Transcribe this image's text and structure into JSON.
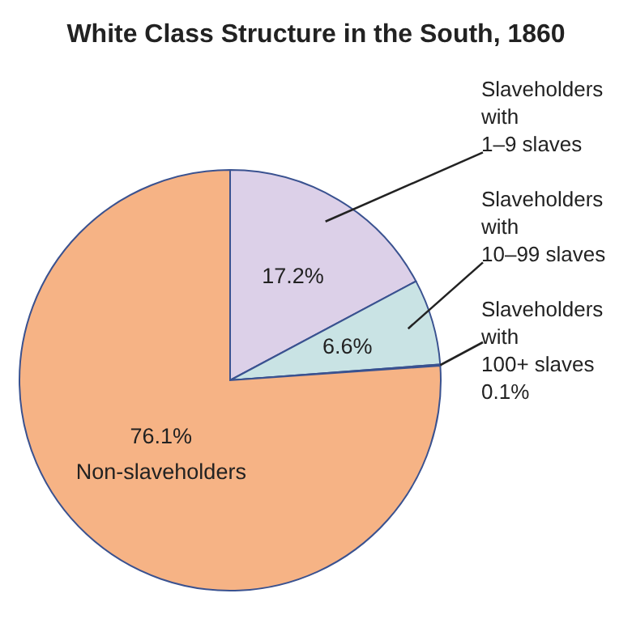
{
  "chart_data": {
    "type": "pie",
    "title": "White Class Structure in the South, 1860",
    "categories": [
      "Slaveholders\nwith\n1–9 slaves",
      "Slaveholders\nwith\n10–99 slaves",
      "Slaveholders\nwith\n100+ slaves",
      "Non-slaveholders"
    ],
    "values": [
      17.2,
      6.6,
      0.1,
      76.1
    ],
    "value_labels": [
      "17.2%",
      "6.6%",
      "0.1%",
      "76.1%"
    ],
    "colors": [
      "#dcd0e8",
      "#c9e3e4",
      "#f2ee9c",
      "#f6b385"
    ]
  }
}
